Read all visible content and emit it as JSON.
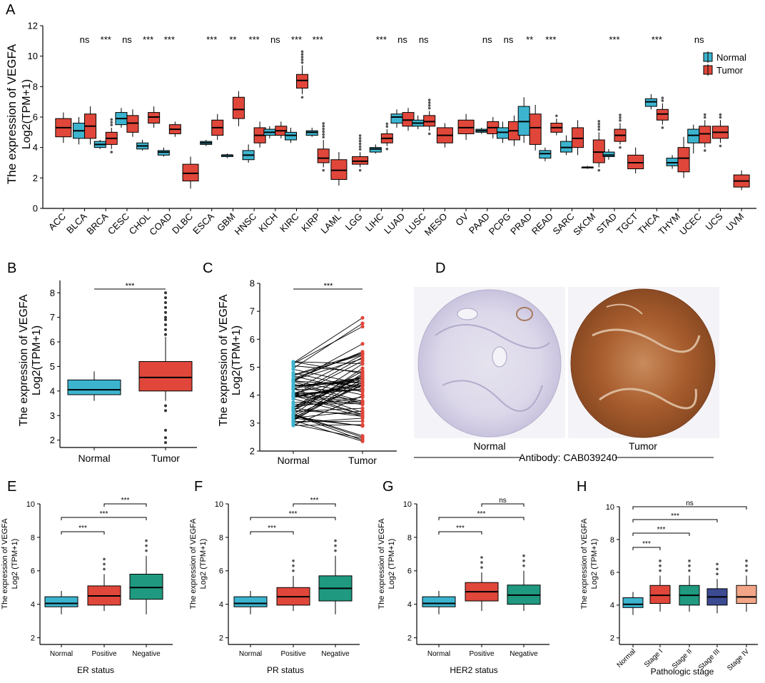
{
  "colors": {
    "normal": "#3cb4cf",
    "tumor": "#e0473a",
    "negative": "#1f9a80",
    "stage3": "#3c4a92",
    "stage4": "#f2a687",
    "axis": "#000000"
  },
  "panelA": {
    "letter": "A",
    "ylabel1": "The expression of VEGFA",
    "ylabel2": "Log2(TPM+1)",
    "legend": {
      "normal": "Normal",
      "tumor": "Tumor"
    }
  },
  "panelB": {
    "letter": "B",
    "ylabel1": "The expression of VEGFA",
    "ylabel2": "Log2(TPM+1)",
    "sig": "***"
  },
  "panelC": {
    "letter": "C",
    "ylabel1": "The expression of VEGFA",
    "ylabel2": "Log2(TPM+1)",
    "sig": "***"
  },
  "panelD": {
    "letter": "D",
    "normal_label": "Normal",
    "tumor_label": "Tumor",
    "antibody": "Antibody: CAB039240"
  },
  "panelE": {
    "letter": "E",
    "xlabel": "ER status"
  },
  "panelF": {
    "letter": "F",
    "xlabel": "PR status"
  },
  "panelG": {
    "letter": "G",
    "xlabel": "HER2 status"
  },
  "panelH": {
    "letter": "H",
    "xlabel": "Pathologic stage"
  },
  "small_ylabel1": "The expression of VEGFA",
  "small_ylabel2": "Log2 (TPM+1)",
  "chart_data": [
    {
      "panel": "A",
      "type": "box",
      "ylim": [
        0,
        12
      ],
      "yticks": [
        0,
        2,
        4,
        6,
        8,
        10,
        12
      ],
      "categories": [
        "ACC",
        "BLCA",
        "BRCA",
        "CESC",
        "CHOL",
        "COAD",
        "DLBC",
        "ESCA",
        "GBM",
        "HNSC",
        "KICH",
        "KIRC",
        "KIRP",
        "LAML",
        "LGG",
        "LIHC",
        "LUAD",
        "LUSC",
        "MESO",
        "OV",
        "PAAD",
        "PCPG",
        "PRAD",
        "READ",
        "SARC",
        "SKCM",
        "STAD",
        "TGCT",
        "THCA",
        "THYM",
        "UCEC",
        "UCS",
        "UVM"
      ],
      "significance": [
        "",
        "ns",
        "***",
        "ns",
        "***",
        "***",
        "",
        "***",
        "**",
        "***",
        "ns",
        "***",
        "***",
        "",
        "",
        "***",
        "ns",
        "ns",
        "",
        "",
        "ns",
        "ns",
        "**",
        "***",
        "",
        "",
        "***",
        "",
        "***",
        "",
        "ns",
        "",
        ""
      ],
      "normal": [
        null,
        [
          4.2,
          4.6,
          5.1,
          5.6,
          6.0
        ],
        [
          3.9,
          4.0,
          4.2,
          4.4,
          4.5
        ],
        [
          5.3,
          5.5,
          5.9,
          6.3,
          6.6
        ],
        [
          3.8,
          3.9,
          4.1,
          4.3,
          4.5
        ],
        [
          3.4,
          3.5,
          3.7,
          3.8,
          4.0
        ],
        null,
        [
          4.1,
          4.2,
          4.3,
          4.4,
          4.5
        ],
        [
          3.3,
          3.4,
          3.5,
          3.5,
          3.6
        ],
        [
          3.0,
          3.2,
          3.5,
          3.8,
          4.2
        ],
        [
          4.6,
          4.8,
          5.0,
          5.2,
          5.4
        ],
        [
          4.3,
          4.5,
          4.8,
          5.0,
          5.3
        ],
        [
          4.7,
          4.8,
          5.0,
          5.1,
          5.3
        ],
        null,
        null,
        [
          3.6,
          3.7,
          3.9,
          4.0,
          4.2
        ],
        [
          5.3,
          5.6,
          6.0,
          6.2,
          6.5
        ],
        [
          5.2,
          5.4,
          5.6,
          5.8,
          6.1
        ],
        null,
        null,
        [
          4.9,
          5.0,
          5.1,
          5.2,
          5.3
        ],
        [
          4.3,
          4.6,
          5.0,
          5.3,
          5.7
        ],
        [
          4.3,
          4.8,
          5.7,
          6.7,
          7.3
        ],
        [
          3.1,
          3.3,
          3.6,
          3.8,
          4.0
        ],
        [
          3.5,
          3.7,
          4.0,
          4.4,
          4.8
        ],
        [
          2.6,
          2.7,
          2.7,
          2.7,
          2.8
        ],
        [
          3.2,
          3.4,
          3.5,
          3.7,
          3.9
        ],
        null,
        [
          6.5,
          6.7,
          7.0,
          7.2,
          7.5
        ],
        [
          2.6,
          2.8,
          3.0,
          3.3,
          3.5
        ],
        [
          3.6,
          4.3,
          4.8,
          5.2,
          5.5
        ],
        null,
        null
      ],
      "tumor": [
        [
          4.3,
          4.7,
          5.3,
          5.9,
          6.3
        ],
        [
          4.2,
          4.6,
          5.4,
          6.2,
          6.7
        ],
        [
          3.9,
          4.2,
          4.6,
          5.0,
          5.3
        ],
        [
          4.7,
          5.0,
          5.6,
          6.1,
          6.5
        ],
        [
          5.3,
          5.6,
          6.0,
          6.3,
          6.7
        ],
        [
          4.7,
          4.9,
          5.2,
          5.5,
          5.7
        ],
        [
          1.3,
          1.8,
          2.3,
          2.9,
          3.4
        ],
        [
          4.5,
          4.8,
          5.3,
          5.8,
          6.2
        ],
        [
          5.4,
          5.9,
          6.5,
          7.3,
          7.7
        ],
        [
          4.0,
          4.3,
          4.8,
          5.3,
          5.7
        ],
        [
          4.6,
          4.8,
          5.1,
          5.4,
          5.7
        ],
        [
          7.5,
          7.9,
          8.4,
          8.8,
          9.4
        ],
        [
          2.7,
          3.0,
          3.3,
          3.9,
          4.5
        ],
        [
          1.5,
          1.9,
          2.5,
          3.2,
          3.7
        ],
        [
          2.7,
          2.9,
          3.1,
          3.4,
          3.7
        ],
        [
          4.1,
          4.3,
          4.6,
          4.9,
          5.2
        ],
        [
          5.1,
          5.4,
          5.8,
          6.3,
          6.6
        ],
        [
          5.1,
          5.4,
          5.7,
          6.1,
          6.4
        ],
        [
          4.0,
          4.3,
          4.8,
          5.3,
          5.6
        ],
        [
          4.5,
          4.9,
          5.3,
          5.8,
          6.2
        ],
        [
          4.6,
          4.9,
          5.3,
          5.7,
          6.0
        ],
        [
          4.1,
          4.5,
          5.1,
          5.7,
          6.1
        ],
        [
          3.8,
          4.2,
          5.3,
          6.2,
          6.8
        ],
        [
          4.8,
          5.0,
          5.3,
          5.6,
          5.9
        ],
        [
          3.5,
          4.0,
          4.6,
          5.3,
          5.8
        ],
        [
          2.7,
          3.0,
          3.7,
          4.5,
          5.0
        ],
        [
          4.2,
          4.4,
          4.8,
          5.2,
          5.6
        ],
        [
          2.3,
          2.6,
          3.0,
          3.5,
          4.0
        ],
        [
          5.5,
          5.8,
          6.2,
          6.5,
          6.9
        ],
        [
          2.0,
          2.4,
          3.3,
          4.0,
          4.7
        ],
        [
          4.0,
          4.3,
          4.9,
          5.4,
          5.8
        ],
        [
          4.3,
          4.6,
          5.0,
          5.4,
          5.8
        ],
        [
          1.2,
          1.4,
          1.8,
          2.2,
          2.5
        ]
      ]
    },
    {
      "panel": "B",
      "type": "box",
      "ylim": [
        1.7,
        8.5
      ],
      "yticks": [
        2,
        3,
        4,
        5,
        6,
        7,
        8
      ],
      "categories": [
        "Normal",
        "Tumor"
      ],
      "boxes": [
        [
          3.6,
          3.85,
          4.05,
          4.45,
          4.8
        ],
        [
          3.6,
          4.0,
          4.55,
          5.2,
          6.2
        ]
      ]
    },
    {
      "panel": "C",
      "type": "paired-line",
      "ylim": [
        2,
        8
      ],
      "yticks": [
        2,
        3,
        4,
        5,
        6,
        7,
        8
      ],
      "categories": [
        "Normal",
        "Tumor"
      ]
    },
    {
      "panel": "E",
      "type": "box",
      "ylim": [
        1.6,
        10
      ],
      "yticks": [
        2,
        4,
        6,
        8,
        10
      ],
      "categories": [
        "Normal",
        "Positive",
        "Negative"
      ],
      "boxes": [
        [
          3.4,
          3.85,
          4.05,
          4.45,
          4.8
        ],
        [
          3.6,
          3.95,
          4.5,
          5.1,
          5.8
        ],
        [
          3.4,
          4.3,
          5.0,
          5.8,
          6.9
        ]
      ],
      "comparisons": [
        {
          "a": 0,
          "b": 1,
          "label": "***"
        },
        {
          "a": 0,
          "b": 2,
          "label": "***"
        },
        {
          "a": 1,
          "b": 2,
          "label": "***"
        }
      ]
    },
    {
      "panel": "F",
      "type": "box",
      "ylim": [
        1.6,
        10
      ],
      "yticks": [
        2,
        4,
        6,
        8,
        10
      ],
      "categories": [
        "Normal",
        "Positive",
        "Negative"
      ],
      "boxes": [
        [
          3.4,
          3.85,
          4.05,
          4.45,
          4.8
        ],
        [
          3.6,
          3.95,
          4.45,
          5.0,
          5.7
        ],
        [
          3.4,
          4.2,
          4.95,
          5.7,
          6.9
        ]
      ],
      "comparisons": [
        {
          "a": 0,
          "b": 1,
          "label": "***"
        },
        {
          "a": 0,
          "b": 2,
          "label": "***"
        },
        {
          "a": 1,
          "b": 2,
          "label": "***"
        }
      ]
    },
    {
      "panel": "G",
      "type": "box",
      "ylim": [
        1.6,
        10
      ],
      "yticks": [
        2,
        4,
        6,
        8,
        10
      ],
      "categories": [
        "Normal",
        "Positive",
        "Negative"
      ],
      "boxes": [
        [
          3.4,
          3.85,
          4.05,
          4.45,
          4.8
        ],
        [
          3.6,
          4.2,
          4.75,
          5.3,
          5.9
        ],
        [
          3.6,
          4.0,
          4.55,
          5.15,
          6.0
        ]
      ],
      "comparisons": [
        {
          "a": 0,
          "b": 1,
          "label": "***"
        },
        {
          "a": 0,
          "b": 2,
          "label": "***"
        },
        {
          "a": 1,
          "b": 2,
          "label": "ns"
        }
      ]
    },
    {
      "panel": "H",
      "type": "box",
      "ylim": [
        1.6,
        10
      ],
      "yticks": [
        2,
        4,
        6,
        8,
        10
      ],
      "categories": [
        "Normal",
        "Stage I",
        "Stage II",
        "Stage III",
        "Stage IV"
      ],
      "boxes": [
        [
          3.4,
          3.85,
          4.05,
          4.45,
          4.8
        ],
        [
          3.6,
          4.1,
          4.6,
          5.2,
          5.8
        ],
        [
          3.6,
          4.0,
          4.6,
          5.2,
          5.8
        ],
        [
          3.5,
          4.0,
          4.5,
          5.0,
          5.6
        ],
        [
          3.6,
          4.1,
          4.5,
          5.2,
          5.8
        ]
      ],
      "comparisons": [
        {
          "a": 0,
          "b": 1,
          "label": "***"
        },
        {
          "a": 0,
          "b": 2,
          "label": "***"
        },
        {
          "a": 0,
          "b": 3,
          "label": "***"
        },
        {
          "a": 0,
          "b": 4,
          "label": "ns"
        }
      ]
    }
  ]
}
